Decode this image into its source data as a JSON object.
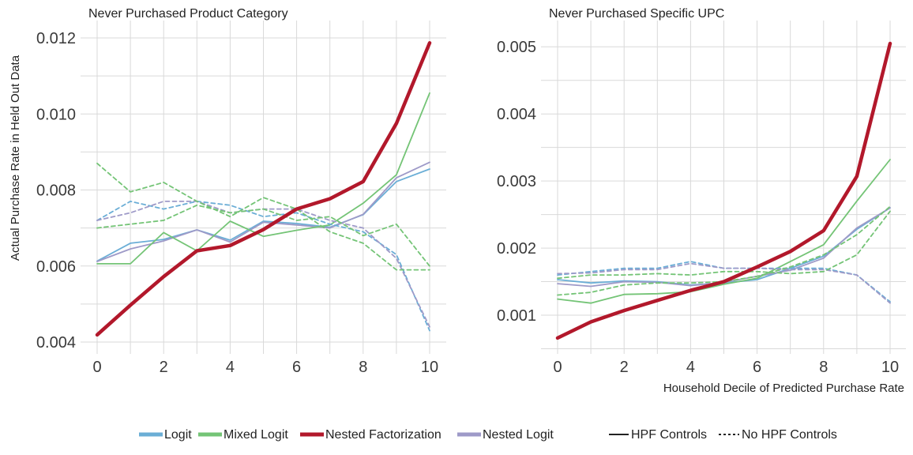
{
  "chart_data": [
    {
      "type": "line",
      "title": "Never Purchased Product Category",
      "xlabel": "",
      "ylabel": "Actual Purchase Rate in Held Out Data",
      "xlim": [
        0,
        10
      ],
      "ylim": [
        0.004,
        0.012
      ],
      "xticks": [
        0,
        2,
        4,
        6,
        8,
        10
      ],
      "xtick_labels": [
        "0",
        "2",
        "4",
        "6",
        "8",
        "10"
      ],
      "yticks": [
        0.004,
        0.006,
        0.008,
        0.01,
        0.012
      ],
      "ytick_labels": [
        "0.004",
        "0.006",
        "0.008",
        "0.010",
        "0.012"
      ],
      "grid": true,
      "x": [
        0,
        1,
        2,
        3,
        4,
        5,
        6,
        7,
        8,
        9,
        10
      ],
      "series": [
        {
          "name": "Logit",
          "style": "HPF Controls",
          "values": [
            0.00613,
            0.0066,
            0.0067,
            0.00695,
            0.00668,
            0.00718,
            0.00712,
            0.00702,
            0.00735,
            0.00822,
            0.00855
          ]
        },
        {
          "name": "Nested Logit",
          "style": "HPF Controls",
          "values": [
            0.00612,
            0.00645,
            0.00666,
            0.00695,
            0.00663,
            0.00715,
            0.00708,
            0.007,
            0.00736,
            0.00832,
            0.00873
          ]
        },
        {
          "name": "Mixed Logit",
          "style": "HPF Controls",
          "values": [
            0.00606,
            0.00606,
            0.00688,
            0.0064,
            0.00718,
            0.00678,
            0.00694,
            0.00708,
            0.00765,
            0.0084,
            0.01055
          ]
        },
        {
          "name": "Logit",
          "style": "No HPF Controls",
          "values": [
            0.0072,
            0.0077,
            0.0075,
            0.0077,
            0.0076,
            0.0073,
            0.0074,
            0.0071,
            0.0069,
            0.0063,
            0.0043
          ]
        },
        {
          "name": "Nested Logit",
          "style": "No HPF Controls",
          "values": [
            0.0072,
            0.0074,
            0.0077,
            0.0077,
            0.0074,
            0.0075,
            0.0075,
            0.0072,
            0.007,
            0.0062,
            0.0044
          ]
        },
        {
          "name": "Mixed Logit",
          "style": "No HPF Controls",
          "values": [
            0.0087,
            0.00795,
            0.0082,
            0.0077,
            0.0073,
            0.0078,
            0.0075,
            0.0069,
            0.0066,
            0.0059,
            0.0059
          ]
        },
        {
          "name": "Mixed Logit",
          "style": "No HPF Controls",
          "values": [
            0.007,
            0.0071,
            0.0072,
            0.0076,
            0.0074,
            0.0075,
            0.0072,
            0.0073,
            0.0068,
            0.0071,
            0.006
          ]
        },
        {
          "name": "Nested Factorization",
          "style": "HPF Controls",
          "values": [
            0.00419,
            0.00497,
            0.00572,
            0.0064,
            0.00654,
            0.00696,
            0.0075,
            0.00777,
            0.00822,
            0.00975,
            0.01187
          ]
        }
      ]
    },
    {
      "type": "line",
      "title": "Never Purchased Specific UPC",
      "xlabel": "Household Decile of Predicted Purchase Rate",
      "ylabel": "",
      "xlim": [
        0,
        10
      ],
      "ylim": [
        0.0006,
        0.00505
      ],
      "xticks": [
        0,
        2,
        4,
        6,
        8,
        10
      ],
      "xtick_labels": [
        "0",
        "2",
        "4",
        "6",
        "8",
        "10"
      ],
      "yticks": [
        0.001,
        0.002,
        0.003,
        0.004,
        0.005
      ],
      "ytick_labels": [
        "0.001",
        "0.002",
        "0.003",
        "0.004",
        "0.005"
      ],
      "grid": true,
      "x": [
        0,
        1,
        2,
        3,
        4,
        5,
        6,
        7,
        8,
        9,
        10
      ],
      "series": [
        {
          "name": "Logit",
          "style": "HPF Controls",
          "values": [
            0.00153,
            0.00148,
            0.00151,
            0.0015,
            0.00145,
            0.00148,
            0.00153,
            0.0017,
            0.00188,
            0.00228,
            0.0026
          ]
        },
        {
          "name": "Nested Logit",
          "style": "HPF Controls",
          "values": [
            0.00147,
            0.00143,
            0.0015,
            0.00149,
            0.00144,
            0.00149,
            0.00158,
            0.00167,
            0.00185,
            0.0023,
            0.0026
          ]
        },
        {
          "name": "Mixed Logit",
          "style": "HPF Controls",
          "values": [
            0.00124,
            0.00118,
            0.00131,
            0.00132,
            0.00135,
            0.00146,
            0.00155,
            0.0018,
            0.00205,
            0.0027,
            0.00332
          ]
        },
        {
          "name": "Logit",
          "style": "No HPF Controls",
          "values": [
            0.0016,
            0.00165,
            0.0017,
            0.0017,
            0.0018,
            0.0017,
            0.0017,
            0.0017,
            0.0017,
            0.0016,
            0.0012
          ]
        },
        {
          "name": "Nested Logit",
          "style": "No HPF Controls",
          "values": [
            0.00162,
            0.00163,
            0.00168,
            0.00168,
            0.00177,
            0.0017,
            0.0017,
            0.00168,
            0.00168,
            0.0016,
            0.00118
          ]
        },
        {
          "name": "Mixed Logit",
          "style": "No HPF Controls",
          "values": [
            0.00155,
            0.0016,
            0.0016,
            0.00162,
            0.0016,
            0.00165,
            0.00165,
            0.00162,
            0.00165,
            0.0019,
            0.00255
          ]
        },
        {
          "name": "Mixed Logit",
          "style": "No HPF Controls",
          "values": [
            0.0013,
            0.00134,
            0.00145,
            0.00148,
            0.00148,
            0.0015,
            0.00158,
            0.00172,
            0.0019,
            0.0022,
            0.00262
          ]
        },
        {
          "name": "Nested Factorization",
          "style": "HPF Controls",
          "values": [
            0.00066,
            0.0009,
            0.00107,
            0.00122,
            0.00137,
            0.0015,
            0.00172,
            0.00195,
            0.00226,
            0.00307,
            0.00505
          ]
        }
      ]
    }
  ],
  "legend": {
    "placement": "bottom",
    "models": [
      {
        "label": "Logit",
        "color": "#6baed6"
      },
      {
        "label": "Mixed Logit",
        "color": "#74c476"
      },
      {
        "label": "Nested Factorization",
        "color": "#b2182b"
      },
      {
        "label": "Nested Logit",
        "color": "#9e9ac8"
      }
    ],
    "styles": [
      {
        "label": "HPF Controls",
        "dash": "solid"
      },
      {
        "label": "No HPF Controls",
        "dash": "dashed"
      }
    ]
  },
  "colors": {
    "Logit": "#6baed6",
    "Mixed Logit": "#74c476",
    "Nested Factorization": "#b2182b",
    "Nested Logit": "#9e9ac8",
    "grid": "#d9d9d9",
    "style_key": "#222222"
  }
}
